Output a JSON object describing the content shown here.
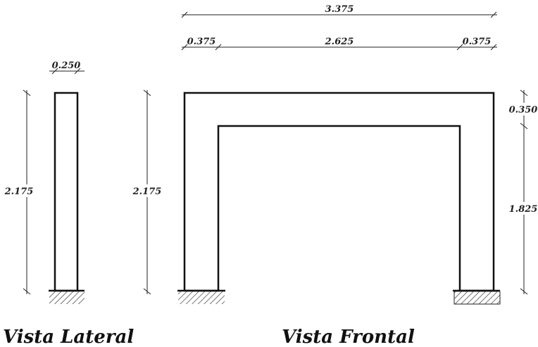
{
  "dimensions": {
    "frontal_total_width": "3.375",
    "frontal_left_column_width": "0.375",
    "frontal_clear_span": "2.625",
    "frontal_right_column_width": "0.375",
    "lateral_width": "0.250",
    "lateral_height": "2.175",
    "frontal_height": "2.175",
    "beam_depth": "0.350",
    "clear_height": "1.825"
  },
  "titles": {
    "lateral": "Vista Lateral",
    "frontal": "Vista Frontal"
  },
  "colors": {
    "line": "#111111",
    "dim_line": "#222222",
    "background": "#ffffff"
  }
}
